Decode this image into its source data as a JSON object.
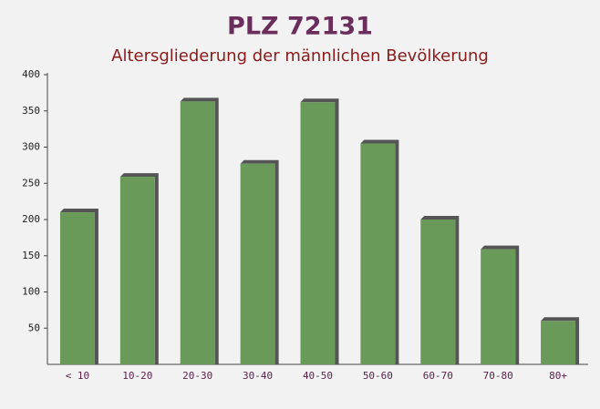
{
  "chart_data": {
    "type": "bar",
    "title": "PLZ 72131",
    "subtitle": "Altersgliederung der männlichen Bevölkerung",
    "categories": [
      "< 10",
      "10-20",
      "20-30",
      "30-40",
      "40-50",
      "50-60",
      "60-70",
      "70-80",
      "80+"
    ],
    "values": [
      210,
      259,
      363,
      277,
      362,
      305,
      200,
      159,
      60
    ],
    "color": "#6a9a5a",
    "ylim": [
      0,
      400
    ],
    "yticks": [
      50,
      100,
      150,
      200,
      250,
      300,
      350,
      400
    ]
  }
}
